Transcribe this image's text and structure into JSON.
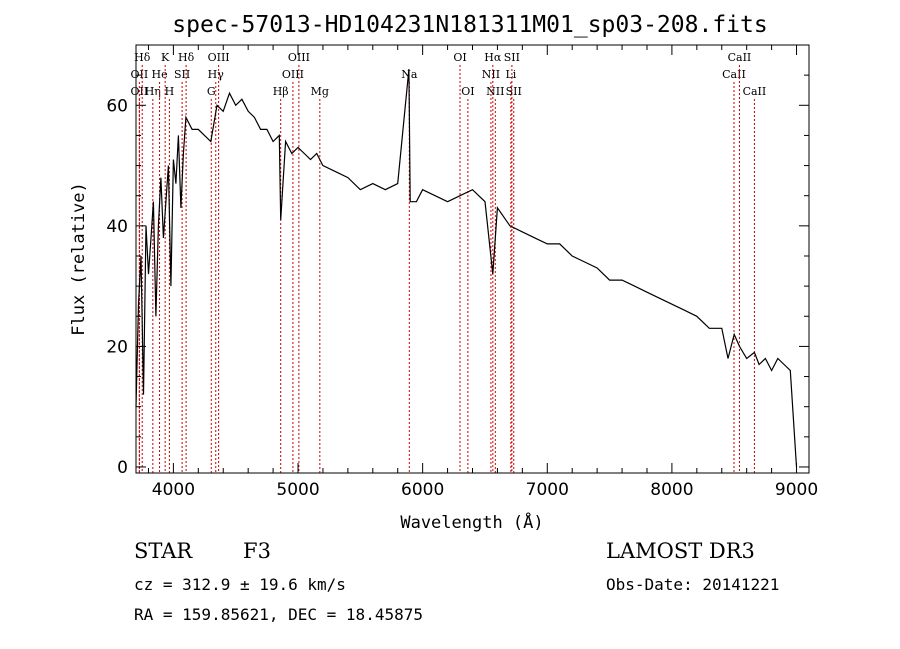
{
  "chart_data": {
    "type": "line",
    "title": "spec-57013-HD104231N181311M01_sp03-208.fits",
    "xlabel": "Wavelength (Å)",
    "ylabel": "Flux (relative)",
    "xlim": [
      3700,
      9100
    ],
    "ylim": [
      -1,
      70
    ],
    "x_ticks": [
      4000,
      5000,
      6000,
      7000,
      8000,
      9000
    ],
    "y_ticks": [
      0,
      20,
      40,
      60
    ],
    "series": [
      {
        "name": "flux",
        "x": [
          3700,
          3720,
          3740,
          3760,
          3780,
          3800,
          3820,
          3840,
          3860,
          3880,
          3900,
          3920,
          3940,
          3960,
          3980,
          4000,
          4020,
          4040,
          4060,
          4080,
          4100,
          4150,
          4200,
          4250,
          4300,
          4350,
          4400,
          4450,
          4500,
          4550,
          4600,
          4650,
          4700,
          4750,
          4800,
          4850,
          4861,
          4900,
          4950,
          5000,
          5050,
          5100,
          5150,
          5200,
          5300,
          5400,
          5500,
          5600,
          5700,
          5800,
          5890,
          5900,
          5950,
          6000,
          6100,
          6200,
          6300,
          6400,
          6500,
          6563,
          6600,
          6700,
          6800,
          6900,
          7000,
          7100,
          7200,
          7300,
          7400,
          7500,
          7600,
          7700,
          7800,
          7900,
          8000,
          8100,
          8200,
          8300,
          8400,
          8450,
          8500,
          8542,
          8600,
          8662,
          8700,
          8750,
          8800,
          8850,
          8900,
          8950,
          9000
        ],
        "y": [
          10,
          27,
          35,
          12,
          40,
          32,
          38,
          44,
          25,
          40,
          48,
          38,
          44,
          50,
          30,
          51,
          47,
          55,
          43,
          52,
          58,
          56,
          56,
          55,
          54,
          60,
          59,
          62,
          60,
          61,
          59,
          58,
          56,
          56,
          54,
          55,
          41,
          54,
          52,
          53,
          52,
          51,
          52,
          50,
          49,
          48,
          46,
          47,
          46,
          47,
          66,
          44,
          44,
          46,
          45,
          44,
          45,
          46,
          44,
          32,
          43,
          40,
          39,
          38,
          37,
          37,
          35,
          34,
          33,
          31,
          31,
          30,
          29,
          28,
          27,
          26,
          25,
          23,
          23,
          18,
          22,
          20,
          18,
          19,
          17,
          18,
          16,
          18,
          17,
          16,
          0
        ]
      }
    ],
    "spectral_lines": [
      {
        "label": "OII",
        "wavelength": 3727,
        "row": 2
      },
      {
        "label": "OII",
        "wavelength": 3727,
        "row": 3
      },
      {
        "label": "Hδ",
        "wavelength": 3750,
        "row": 1
      },
      {
        "label": "Hη",
        "wavelength": 3835,
        "row": 3
      },
      {
        "label": "He",
        "wavelength": 3889,
        "row": 2
      },
      {
        "label": "K",
        "wavelength": 3934,
        "row": 1
      },
      {
        "label": "H",
        "wavelength": 3968,
        "row": 3
      },
      {
        "label": "SII",
        "wavelength": 4070,
        "row": 2
      },
      {
        "label": "Hδ",
        "wavelength": 4102,
        "row": 1
      },
      {
        "label": "OIII",
        "wavelength": 4363,
        "row": 1
      },
      {
        "label": "Hγ",
        "wavelength": 4340,
        "row": 2
      },
      {
        "label": "G",
        "wavelength": 4304,
        "row": 3
      },
      {
        "label": "Hβ",
        "wavelength": 4861,
        "row": 3
      },
      {
        "label": "OIII",
        "wavelength": 4959,
        "row": 2
      },
      {
        "label": "OIII",
        "wavelength": 5007,
        "row": 1
      },
      {
        "label": "Mg",
        "wavelength": 5175,
        "row": 3
      },
      {
        "label": "Na",
        "wavelength": 5893,
        "row": 2
      },
      {
        "label": "OI",
        "wavelength": 6300,
        "row": 1
      },
      {
        "label": "OI",
        "wavelength": 6363,
        "row": 3
      },
      {
        "label": "NII",
        "wavelength": 6548,
        "row": 2
      },
      {
        "label": "Hα",
        "wavelength": 6563,
        "row": 1
      },
      {
        "label": "NII",
        "wavelength": 6583,
        "row": 3
      },
      {
        "label": "SII",
        "wavelength": 6716,
        "row": 1
      },
      {
        "label": "Li",
        "wavelength": 6708,
        "row": 2
      },
      {
        "label": "SII",
        "wavelength": 6731,
        "row": 3
      },
      {
        "label": "CaII",
        "wavelength": 8498,
        "row": 2
      },
      {
        "label": "CaII",
        "wavelength": 8542,
        "row": 1
      },
      {
        "label": "CaII",
        "wavelength": 8662,
        "row": 3
      }
    ],
    "line_marker_color": "#cc0000"
  },
  "info": {
    "class": "STAR",
    "subclass": "F3",
    "survey": "LAMOST DR3",
    "cz": "cz = 312.9 ± 19.6 km/s",
    "obs_date": "Obs-Date: 20141221",
    "radec": "RA = 159.85621, DEC =  18.45875"
  }
}
